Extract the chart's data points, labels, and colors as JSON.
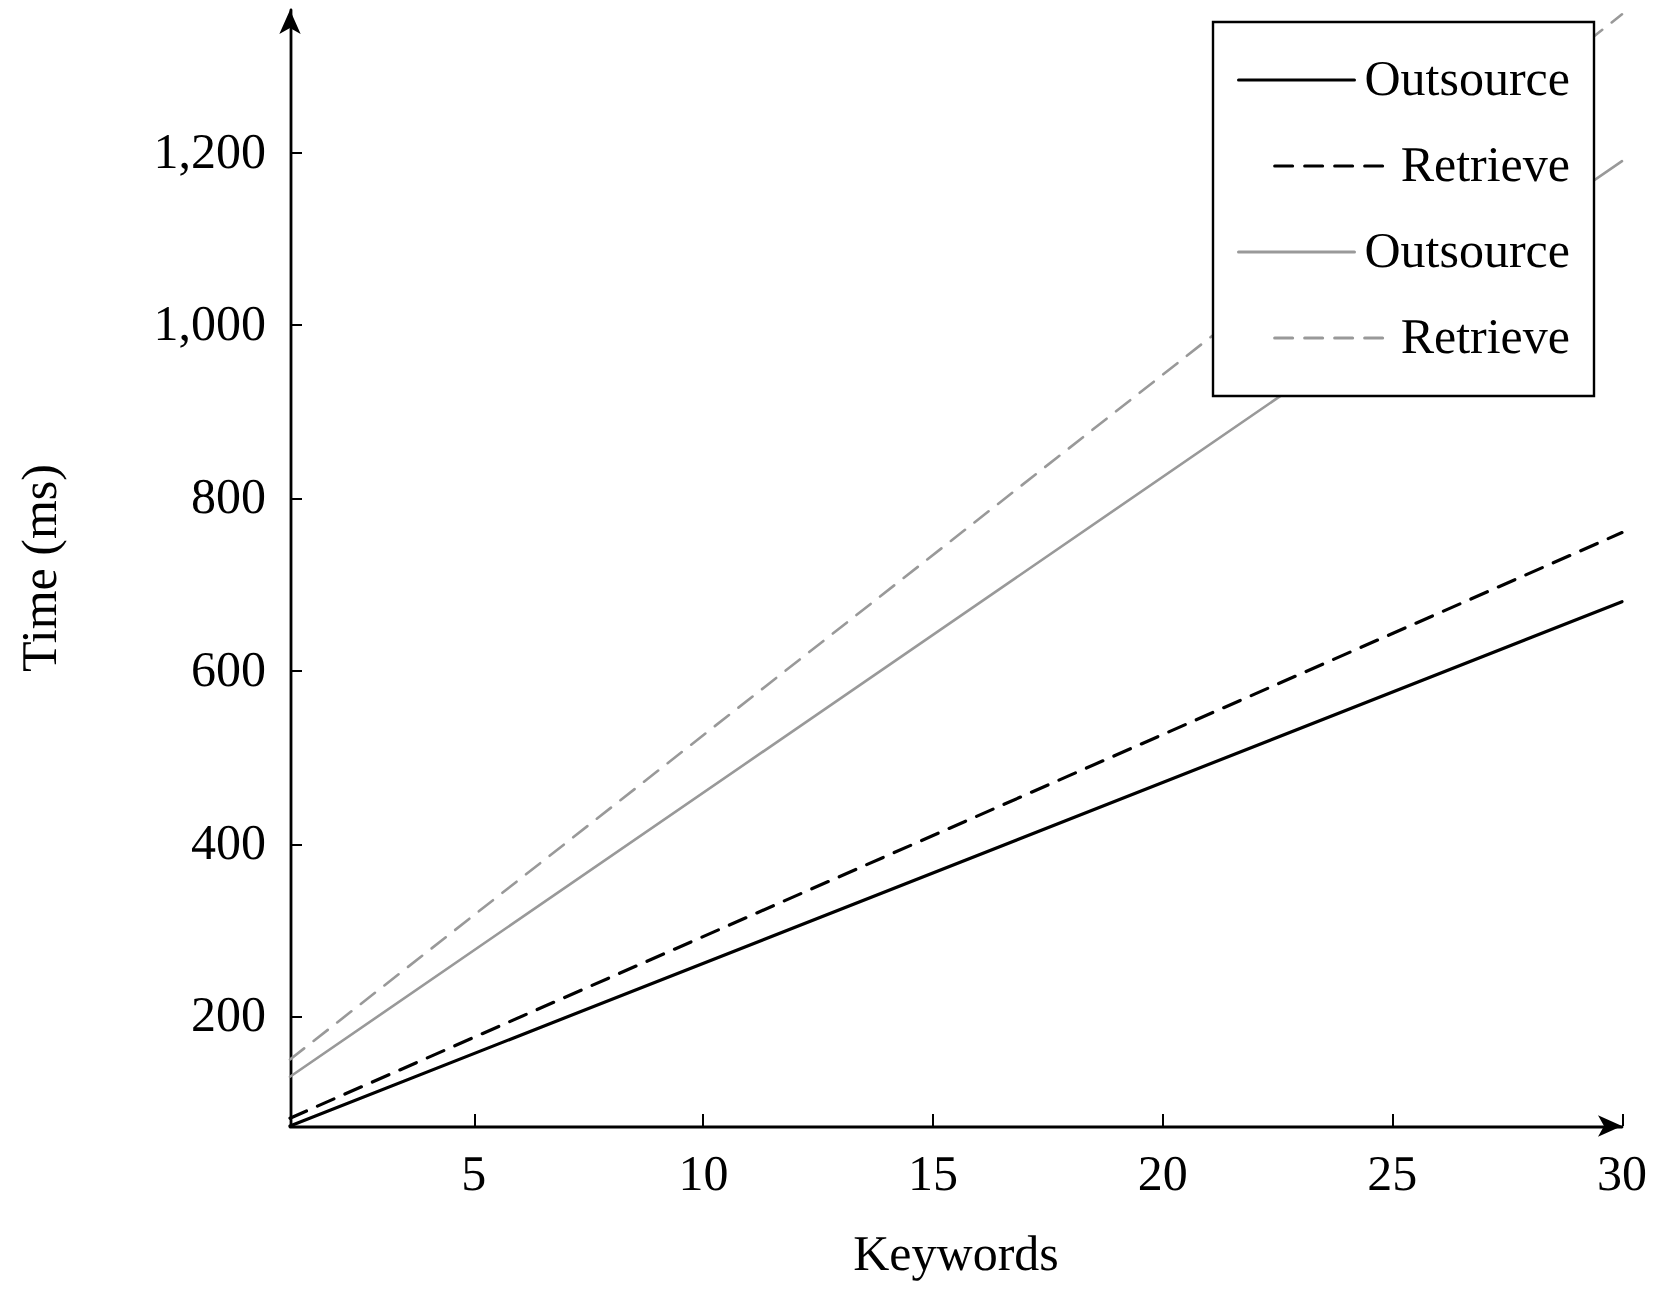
{
  "chart_data": {
    "type": "line",
    "xlabel": "Keywords",
    "ylabel": "Time (ms)",
    "x": [
      1,
      30
    ],
    "series": [
      {
        "name": "Outsource",
        "color": "#000000",
        "line_style": "solid",
        "values": [
          73,
          680
        ]
      },
      {
        "name": "Retrieve",
        "color": "#000000",
        "line_style": "dashed",
        "values": [
          82,
          760
        ]
      },
      {
        "name": "Outsource",
        "color": "#999999",
        "line_style": "solid",
        "values": [
          130,
          1190
        ]
      },
      {
        "name": "Retrieve",
        "color": "#999999",
        "line_style": "dashed",
        "values": [
          150,
          1360
        ]
      }
    ],
    "xlim": [
      1,
      30
    ],
    "xticks": [
      5,
      10,
      15,
      20,
      25,
      30
    ],
    "ylim": [
      73,
      1365
    ],
    "yticks": [
      200,
      400,
      600,
      800,
      {
        "value": 1000,
        "label": "1,000"
      },
      {
        "value": 1200,
        "label": "1,200"
      }
    ],
    "grid": false,
    "legend": "top right",
    "marker": "none"
  }
}
